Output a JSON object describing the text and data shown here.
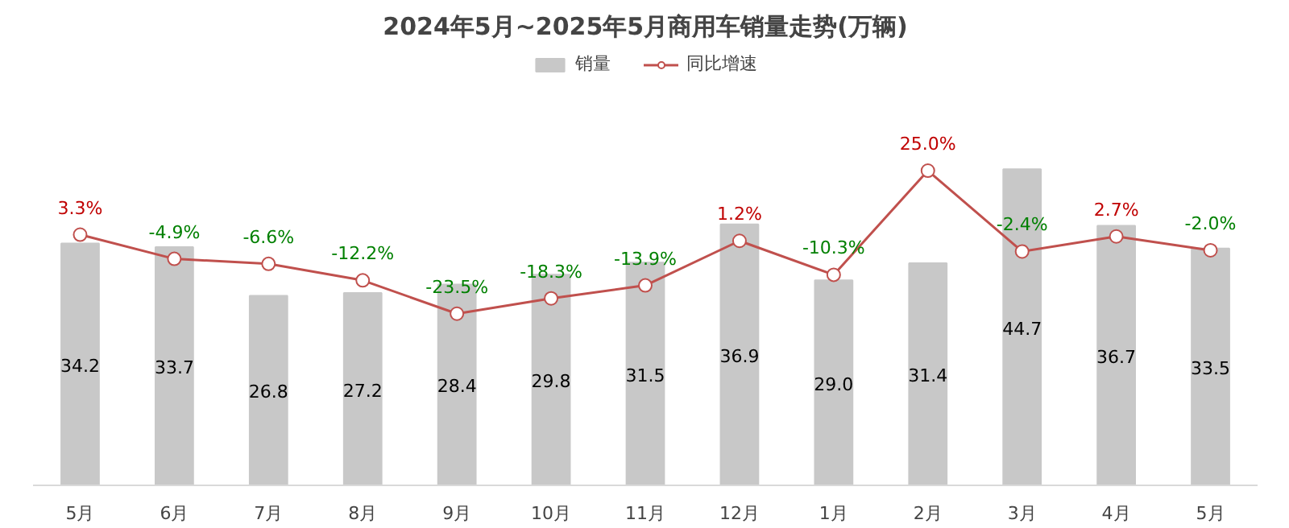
{
  "chart_data": {
    "type": "bar",
    "title": "2024年5月~2025年5月商用车销量走势(万辆)",
    "categories": [
      "5月",
      "6月",
      "7月",
      "8月",
      "9月",
      "10月",
      "11月",
      "12月",
      "1月",
      "2月",
      "3月",
      "4月",
      "5月"
    ],
    "series": [
      {
        "name": "销量",
        "color": "#c8c8c8",
        "values": [
          34.2,
          33.7,
          26.8,
          27.2,
          28.4,
          29.8,
          31.5,
          36.9,
          29.0,
          31.4,
          44.7,
          36.7,
          33.5
        ],
        "value_labels": [
          "34.2",
          "33.7",
          "26.8",
          "27.2",
          "28.4",
          "29.8",
          "31.5",
          "36.9",
          "29.0",
          "31.4",
          "44.7",
          "36.7",
          "33.5"
        ]
      },
      {
        "name": "同比增速",
        "type": "line",
        "axis": "y2",
        "color": "#c0504d",
        "values": [
          3.3,
          -4.9,
          -6.6,
          -12.2,
          -23.5,
          -18.3,
          -13.9,
          1.2,
          -10.3,
          25.0,
          -2.4,
          2.7,
          -2.0
        ],
        "value_labels": [
          "3.3%",
          "-4.9%",
          "-6.6%",
          "-12.2%",
          "-23.5%",
          "-18.3%",
          "-13.9%",
          "1.2%",
          "-10.3%",
          "25.0%",
          "-2.4%",
          "2.7%",
          "-2.0%"
        ]
      }
    ],
    "legend": "top",
    "marker": "circle",
    "grid": false,
    "tick_labels": "x"
  }
}
